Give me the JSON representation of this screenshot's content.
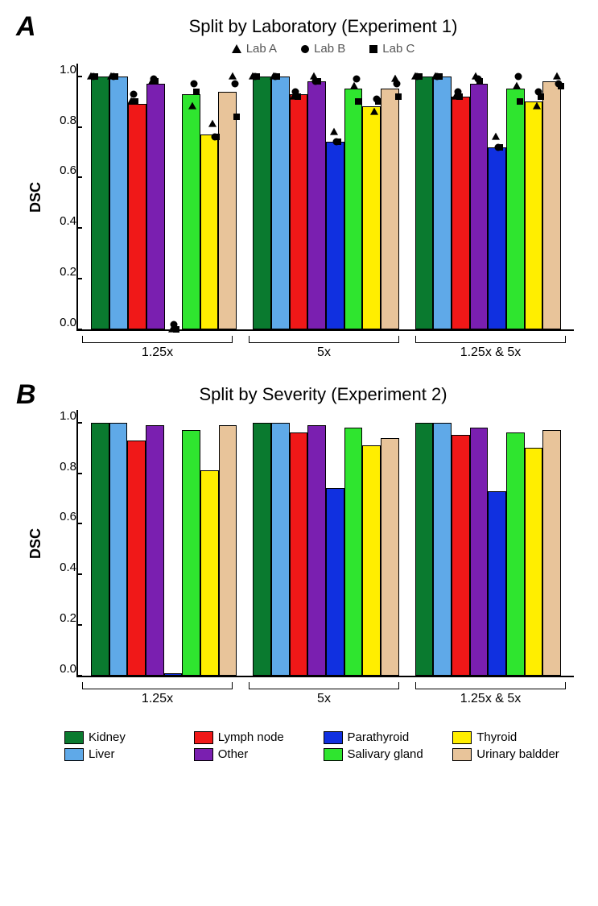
{
  "colors": {
    "kidney": "#0a7a2f",
    "liver": "#5fa9e8",
    "lymph_node": "#f01818",
    "other": "#7a1fb0",
    "parathyroid": "#1030e0",
    "salivary_gland": "#2fe52f",
    "thyroid": "#ffee00",
    "urinary_bladder": "#e8c49a",
    "text": "#000000",
    "legend_text": "#666666",
    "background": "#ffffff"
  },
  "series_order": [
    "kidney",
    "liver",
    "lymph_node",
    "other",
    "parathyroid",
    "salivary_gland",
    "thyroid",
    "urinary_bladder"
  ],
  "series_labels": {
    "kidney": "Kidney",
    "liver": "Liver",
    "lymph_node": "Lymph node",
    "other": "Other",
    "parathyroid": "Parathyroid",
    "salivary_gland": "Salivary gland",
    "thyroid": "Thyroid",
    "urinary_bladder": "Urinary baldder"
  },
  "yaxis": {
    "label": "DSC",
    "min": 0.0,
    "max": 1.05,
    "ticks": [
      0.0,
      0.2,
      0.4,
      0.6,
      0.8,
      1.0
    ],
    "tick_labels": [
      "0.0",
      "0.2",
      "0.4",
      "0.6",
      "0.8",
      "1.0"
    ]
  },
  "marker_legend": [
    {
      "shape": "triangle",
      "label": "Lab A"
    },
    {
      "shape": "circle",
      "label": "Lab B"
    },
    {
      "shape": "square",
      "label": "Lab C"
    }
  ],
  "panelA": {
    "letter": "A",
    "title": "Split by Laboratory (Experiment 1)",
    "groups": [
      {
        "label": "1.25x",
        "bars": {
          "kidney": 1.0,
          "liver": 1.0,
          "lymph_node": 0.89,
          "other": 0.97,
          "parathyroid": 0.0,
          "salivary_gland": 0.93,
          "thyroid": 0.77,
          "urinary_bladder": 0.94
        },
        "markers": {
          "kidney": {
            "A": 1.0,
            "B": 1.0,
            "C": 1.0
          },
          "liver": {
            "A": 1.0,
            "B": 1.0,
            "C": 1.0
          },
          "lymph_node": {
            "A": 0.9,
            "B": 0.93,
            "C": 0.9
          },
          "other": {
            "A": 0.98,
            "B": 0.99,
            "C": 0.98
          },
          "parathyroid": {
            "A": 0.0,
            "B": 0.02,
            "C": 0.0
          },
          "salivary_gland": {
            "A": 0.88,
            "B": 0.97,
            "C": 0.94
          },
          "thyroid": {
            "A": 0.81,
            "B": 0.76,
            "C": 0.76
          },
          "urinary_bladder": {
            "A": 1.0,
            "B": 0.97,
            "C": 0.84
          }
        }
      },
      {
        "label": "5x",
        "bars": {
          "kidney": 1.0,
          "liver": 1.0,
          "lymph_node": 0.93,
          "other": 0.98,
          "parathyroid": 0.74,
          "salivary_gland": 0.95,
          "thyroid": 0.88,
          "urinary_bladder": 0.95
        },
        "markers": {
          "kidney": {
            "A": 1.0,
            "B": 1.0,
            "C": 1.0
          },
          "liver": {
            "A": 1.0,
            "B": 1.0,
            "C": 1.0
          },
          "lymph_node": {
            "A": 0.92,
            "B": 0.94,
            "C": 0.92
          },
          "other": {
            "A": 1.0,
            "B": 0.98,
            "C": 0.98
          },
          "parathyroid": {
            "A": 0.78,
            "B": 0.74,
            "C": 0.74
          },
          "salivary_gland": {
            "A": 0.96,
            "B": 0.99,
            "C": 0.9
          },
          "thyroid": {
            "A": 0.86,
            "B": 0.91,
            "C": 0.9
          },
          "urinary_bladder": {
            "A": 0.99,
            "B": 0.97,
            "C": 0.92
          }
        }
      },
      {
        "label": "1.25x & 5x",
        "bars": {
          "kidney": 1.0,
          "liver": 1.0,
          "lymph_node": 0.92,
          "other": 0.97,
          "parathyroid": 0.72,
          "salivary_gland": 0.95,
          "thyroid": 0.9,
          "urinary_bladder": 0.98
        },
        "markers": {
          "kidney": {
            "A": 1.0,
            "B": 1.0,
            "C": 1.0
          },
          "liver": {
            "A": 1.0,
            "B": 1.0,
            "C": 1.0
          },
          "lymph_node": {
            "A": 0.92,
            "B": 0.94,
            "C": 0.92
          },
          "other": {
            "A": 1.0,
            "B": 0.99,
            "C": 0.98
          },
          "parathyroid": {
            "A": 0.76,
            "B": 0.72,
            "C": 0.72
          },
          "salivary_gland": {
            "A": 0.96,
            "B": 1.0,
            "C": 0.9
          },
          "thyroid": {
            "A": 0.88,
            "B": 0.94,
            "C": 0.92
          },
          "urinary_bladder": {
            "A": 1.0,
            "B": 0.97,
            "C": 0.96
          }
        }
      }
    ]
  },
  "panelB": {
    "letter": "B",
    "title": "Split by Severity (Experiment 2)",
    "groups": [
      {
        "label": "1.25x",
        "bars": {
          "kidney": 1.0,
          "liver": 1.0,
          "lymph_node": 0.93,
          "other": 0.99,
          "parathyroid": 0.01,
          "salivary_gland": 0.97,
          "thyroid": 0.81,
          "urinary_bladder": 0.99
        }
      },
      {
        "label": "5x",
        "bars": {
          "kidney": 1.0,
          "liver": 1.0,
          "lymph_node": 0.96,
          "other": 0.99,
          "parathyroid": 0.74,
          "salivary_gland": 0.98,
          "thyroid": 0.91,
          "urinary_bladder": 0.94
        }
      },
      {
        "label": "1.25x & 5x",
        "bars": {
          "kidney": 1.0,
          "liver": 1.0,
          "lymph_node": 0.95,
          "other": 0.98,
          "parathyroid": 0.73,
          "salivary_gland": 0.96,
          "thyroid": 0.9,
          "urinary_bladder": 0.97
        }
      }
    ]
  },
  "legend_order_grid": [
    [
      "kidney",
      "lymph_node",
      "parathyroid",
      "thyroid"
    ],
    [
      "liver",
      "other",
      "salivary_gland",
      "urinary_bladder"
    ]
  ],
  "style": {
    "title_fontsize": 22,
    "axis_label_fontsize": 18,
    "tick_fontsize": 15,
    "legend_fontsize": 15,
    "panel_letter_fontsize": 34,
    "bar_border_color": "#000000",
    "axis_color": "#000000"
  }
}
